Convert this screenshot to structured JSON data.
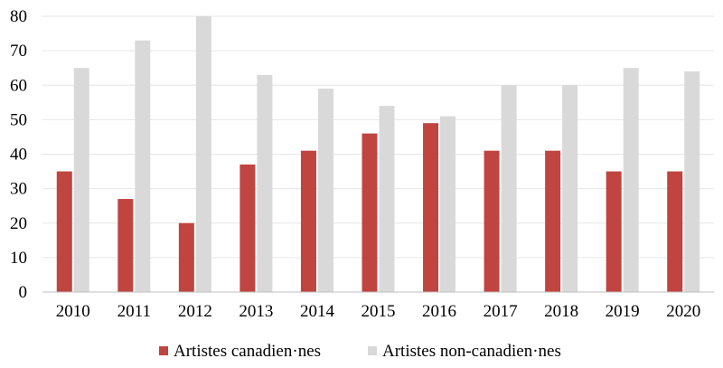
{
  "chart_data": {
    "type": "bar",
    "categories": [
      "2010",
      "2011",
      "2012",
      "2013",
      "2014",
      "2015",
      "2016",
      "2017",
      "2018",
      "2019",
      "2020"
    ],
    "series": [
      {
        "name": "Artistes canadien·nes",
        "values": [
          35,
          27,
          20,
          37,
          41,
          46,
          49,
          41,
          41,
          35,
          35
        ],
        "color": "#C0443F"
      },
      {
        "name": "Artistes non-canadien·nes",
        "values": [
          65,
          73,
          80,
          63,
          59,
          54,
          51,
          60,
          60,
          65,
          64
        ],
        "color": "#D9D9D9"
      }
    ],
    "ylim": [
      0,
      80
    ],
    "yticks": [
      "0",
      "10",
      "20",
      "30",
      "40",
      "50",
      "60",
      "70",
      "80"
    ],
    "grid": true,
    "legend_position": "bottom",
    "gridline_color": "#E6E6E6",
    "axis_color": "#BFBFBF"
  }
}
